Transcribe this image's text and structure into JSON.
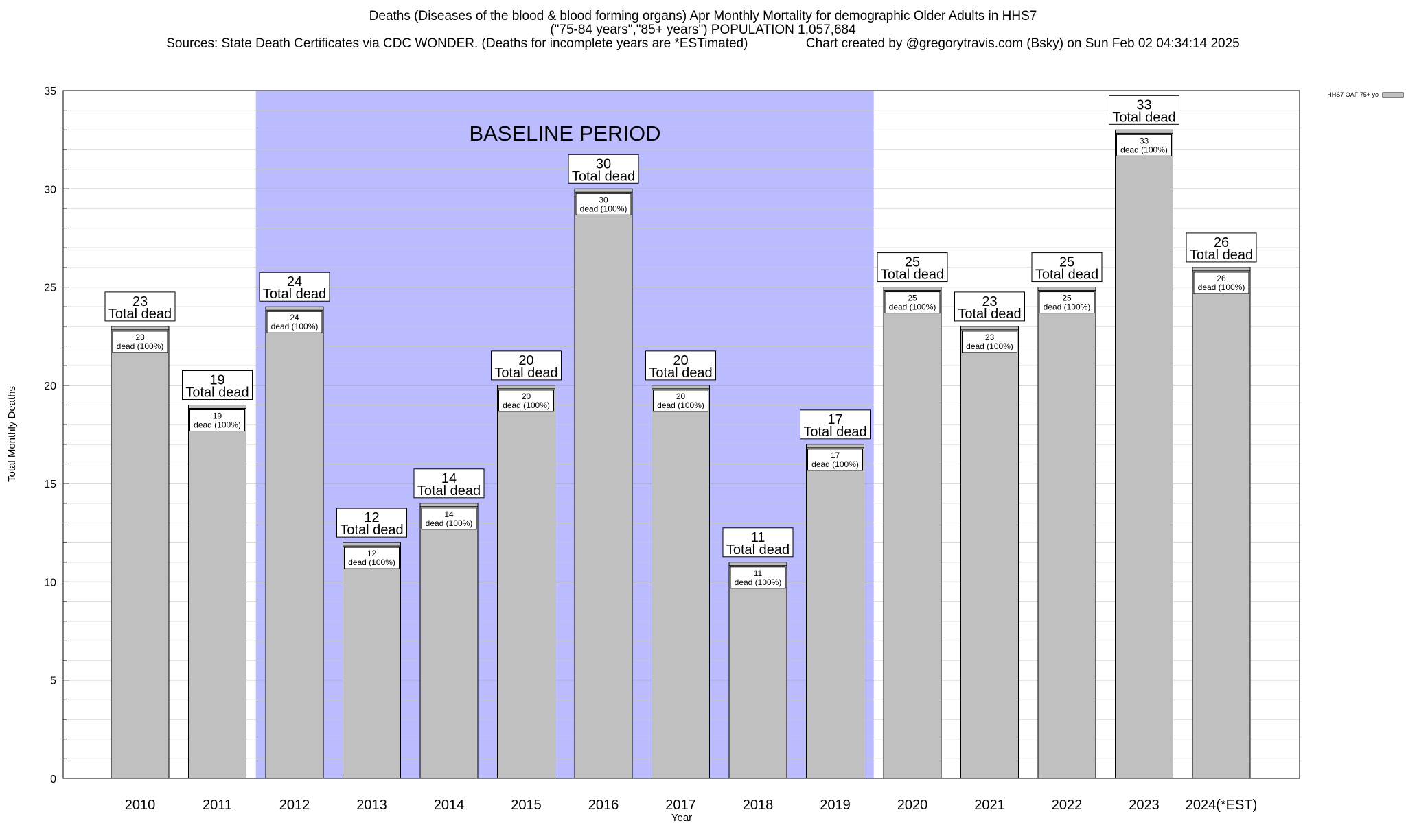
{
  "header": {
    "title_line1": "Deaths (Diseases of the blood & blood forming organs) Apr Monthly Mortality for demographic Older Adults in HHS7",
    "title_line2": "(\"75-84 years\",\"85+ years\") POPULATION 1,057,684",
    "title_line3": "Sources: State Death Certificates via CDC WONDER. (Deaths for incomplete years are *ESTimated)                Chart created by @gregorytravis.com (Bsky) on Sun Feb 02 04:34:14 2025"
  },
  "chart_data": {
    "type": "bar",
    "xlabel": "Year",
    "ylabel": "Total Monthly Deaths",
    "ylim": [
      0,
      35
    ],
    "yticks": [
      0,
      5,
      10,
      15,
      20,
      25,
      30,
      35
    ],
    "minor_grid_step": 1,
    "grid": true,
    "legend": {
      "placement": "top-right",
      "label": "HHS7 OAF 75+ yo"
    },
    "baseline_period": {
      "label": "BASELINE PERIOD",
      "start": "2012",
      "end": "2019",
      "color": "#bbbbff"
    },
    "bar_color": "#c0c0c0",
    "total_label_suffix": "Total dead",
    "inner_label_suffix": "dead (100%)",
    "categories": [
      "2010",
      "2011",
      "2012",
      "2013",
      "2014",
      "2015",
      "2016",
      "2017",
      "2018",
      "2019",
      "2020",
      "2021",
      "2022",
      "2023",
      "2024(*EST)"
    ],
    "series": [
      {
        "name": "HHS7 OAF 75+ yo",
        "values": [
          23,
          19,
          24,
          12,
          14,
          20,
          30,
          20,
          11,
          17,
          25,
          23,
          25,
          33,
          26
        ]
      }
    ]
  }
}
